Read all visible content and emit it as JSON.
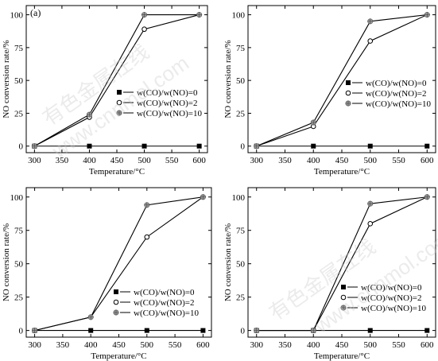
{
  "watermark": {
    "cn": "有色金属在线",
    "url": "www.cnnmol.com"
  },
  "chart_data": [
    {
      "type": "line",
      "panel_label": "(a)",
      "xlabel": "Temperature/°C",
      "ylabel": "NO conversion rate/%",
      "x": [
        300,
        400,
        500,
        600
      ],
      "xticks": [
        300,
        350,
        400,
        450,
        500,
        550,
        600
      ],
      "yticks": [
        0,
        25,
        50,
        75,
        100
      ],
      "xlim": [
        285,
        615
      ],
      "ylim": [
        -5,
        107
      ],
      "grid": false,
      "legend_position": "center-right",
      "series": [
        {
          "name": "w(CO)/w(NO)=0",
          "marker": "square",
          "values": [
            0,
            0,
            0,
            0
          ]
        },
        {
          "name": "w(CO)/w(NO)=2",
          "marker": "circle",
          "values": [
            0,
            22,
            89,
            100
          ]
        },
        {
          "name": "w(CO)/w(NO)=10",
          "marker": "star",
          "values": [
            0,
            24,
            100,
            100
          ]
        }
      ]
    },
    {
      "type": "line",
      "panel_label": "",
      "xlabel": "Temperature/°C",
      "ylabel": "NO conversion rate/%",
      "x": [
        300,
        400,
        500,
        600
      ],
      "xticks": [
        300,
        350,
        400,
        450,
        500,
        550,
        600
      ],
      "yticks": [
        0,
        25,
        50,
        75,
        100
      ],
      "xlim": [
        285,
        615
      ],
      "ylim": [
        -5,
        107
      ],
      "grid": false,
      "legend_position": "center-right",
      "series": [
        {
          "name": "w(CO)/w(NO)=0",
          "marker": "square",
          "values": [
            0,
            0,
            0,
            0
          ]
        },
        {
          "name": "w(CO)/w(NO)=2",
          "marker": "circle",
          "values": [
            0,
            15,
            80,
            100
          ]
        },
        {
          "name": "w(CO)/w(NO)=10",
          "marker": "star",
          "values": [
            0,
            18,
            95,
            100
          ]
        }
      ]
    },
    {
      "type": "line",
      "panel_label": "",
      "xlabel": "Temperature/°C",
      "ylabel": "NO conversion rate/%",
      "x": [
        300,
        400,
        500,
        600
      ],
      "xticks": [
        300,
        350,
        400,
        450,
        500,
        550,
        600
      ],
      "yticks": [
        0,
        25,
        50,
        75,
        100
      ],
      "xlim": [
        285,
        615
      ],
      "ylim": [
        -5,
        107
      ],
      "grid": false,
      "legend_position": "bottom-right",
      "series": [
        {
          "name": "w(CO)/w(NO)=0",
          "marker": "square",
          "values": [
            0,
            0,
            0,
            0
          ]
        },
        {
          "name": "w(CO)/w(NO)=2",
          "marker": "circle",
          "values": [
            0,
            10,
            70,
            100
          ]
        },
        {
          "name": "w(CO)/w(NO)=10",
          "marker": "star",
          "values": [
            0,
            10,
            94,
            100
          ]
        }
      ]
    },
    {
      "type": "line",
      "panel_label": "",
      "xlabel": "Temperature/°C",
      "ylabel": "NO conversion rate/%",
      "x": [
        300,
        400,
        500,
        600
      ],
      "xticks": [
        300,
        350,
        400,
        450,
        500,
        550,
        600
      ],
      "yticks": [
        0,
        25,
        50,
        75,
        100
      ],
      "xlim": [
        285,
        615
      ],
      "ylim": [
        -5,
        107
      ],
      "grid": false,
      "legend_position": "bottom-right",
      "series": [
        {
          "name": "w(CO)/w(NO)=0",
          "marker": "square",
          "values": [
            0,
            0,
            0,
            0
          ]
        },
        {
          "name": "w(CO)/w(NO)=2",
          "marker": "circle",
          "values": [
            0,
            0,
            80,
            100
          ]
        },
        {
          "name": "w(CO)/w(NO)=10",
          "marker": "star",
          "values": [
            0,
            0,
            95,
            100
          ]
        }
      ]
    }
  ]
}
